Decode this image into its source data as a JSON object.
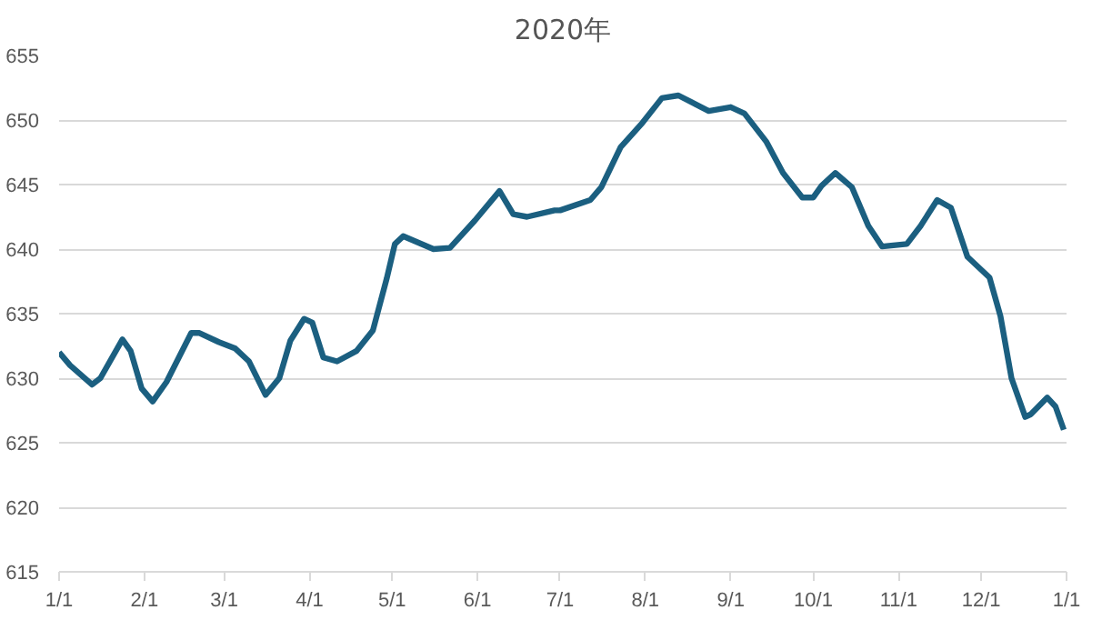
{
  "chart_data": {
    "type": "line",
    "title": "2020年",
    "x": [
      "2020-01-01",
      "2020-01-05",
      "2020-01-13",
      "2020-01-16",
      "2020-01-24",
      "2020-01-27",
      "2020-01-31",
      "2020-02-04",
      "2020-02-09",
      "2020-02-18",
      "2020-02-21",
      "2020-02-28",
      "2020-03-05",
      "2020-03-10",
      "2020-03-16",
      "2020-03-21",
      "2020-03-25",
      "2020-03-30",
      "2020-04-02",
      "2020-04-06",
      "2020-04-11",
      "2020-04-18",
      "2020-04-24",
      "2020-04-29",
      "2020-05-02",
      "2020-05-05",
      "2020-05-16",
      "2020-05-22",
      "2020-05-31",
      "2020-06-09",
      "2020-06-14",
      "2020-06-19",
      "2020-06-29",
      "2020-07-01",
      "2020-07-12",
      "2020-07-16",
      "2020-07-23",
      "2020-07-31",
      "2020-08-07",
      "2020-08-13",
      "2020-08-24",
      "2020-09-01",
      "2020-09-06",
      "2020-09-14",
      "2020-09-20",
      "2020-09-27",
      "2020-10-01",
      "2020-10-04",
      "2020-10-09",
      "2020-10-15",
      "2020-10-21",
      "2020-10-26",
      "2020-11-04",
      "2020-11-09",
      "2020-11-15",
      "2020-11-20",
      "2020-11-26",
      "2020-12-04",
      "2020-12-08",
      "2020-12-12",
      "2020-12-17",
      "2020-12-19",
      "2020-12-25",
      "2020-12-28",
      "2020-12-31"
    ],
    "series": [
      {
        "color": "#1b5f80",
        "values": [
          632.0,
          631.0,
          629.5,
          630.0,
          633.0,
          632.1,
          629.2,
          628.2,
          629.7,
          633.5,
          633.5,
          632.8,
          632.3,
          631.3,
          628.7,
          630.0,
          632.9,
          634.6,
          634.3,
          631.6,
          631.3,
          632.1,
          633.7,
          637.7,
          640.4,
          641.0,
          640.0,
          640.1,
          642.2,
          644.5,
          642.7,
          642.5,
          643.0,
          643.0,
          643.8,
          644.8,
          647.9,
          649.8,
          651.7,
          651.9,
          650.7,
          651.0,
          650.5,
          648.3,
          645.9,
          644.0,
          644.0,
          644.9,
          645.9,
          644.8,
          641.8,
          640.2,
          640.4,
          641.8,
          643.8,
          643.2,
          639.4,
          637.8,
          634.8,
          630.0,
          627.0,
          627.2,
          628.5,
          627.8,
          626.0
        ]
      }
    ],
    "xlim": [
      "2020-01-01",
      "2021-01-01"
    ],
    "xticks": [
      {
        "value": "2020-01-01",
        "label": "1/1"
      },
      {
        "value": "2020-02-01",
        "label": "2/1"
      },
      {
        "value": "2020-03-01",
        "label": "3/1"
      },
      {
        "value": "2020-04-01",
        "label": "4/1"
      },
      {
        "value": "2020-05-01",
        "label": "5/1"
      },
      {
        "value": "2020-06-01",
        "label": "6/1"
      },
      {
        "value": "2020-07-01",
        "label": "7/1"
      },
      {
        "value": "2020-08-01",
        "label": "8/1"
      },
      {
        "value": "2020-09-01",
        "label": "9/1"
      },
      {
        "value": "2020-10-01",
        "label": "10/1"
      },
      {
        "value": "2020-11-01",
        "label": "11/1"
      },
      {
        "value": "2020-12-01",
        "label": "12/1"
      },
      {
        "value": "2021-01-01",
        "label": "1/1"
      }
    ],
    "ylim": [
      615,
      655
    ],
    "yticks": [
      615,
      620,
      625,
      630,
      635,
      640,
      645,
      650,
      655
    ],
    "grid": "y",
    "marker": "none",
    "line_style": "solid"
  }
}
